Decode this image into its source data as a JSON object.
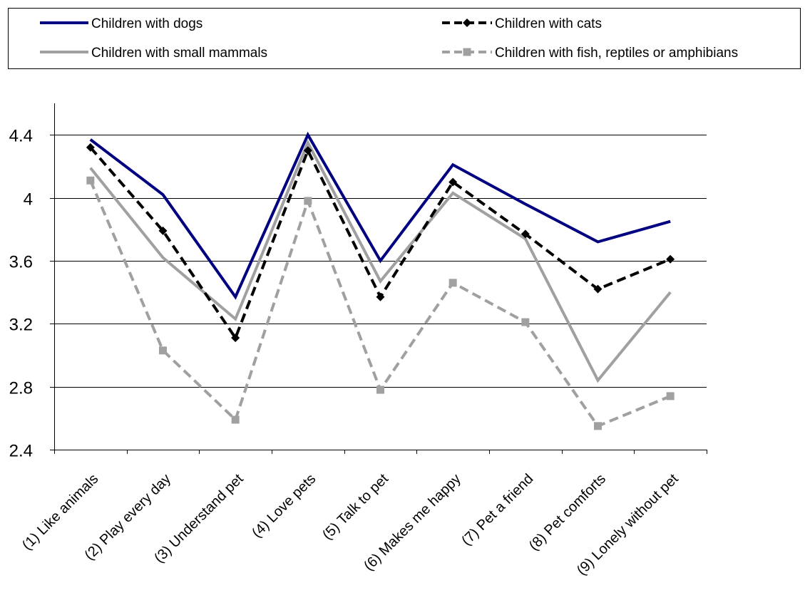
{
  "chart_data": {
    "type": "line",
    "title": "",
    "xlabel": "",
    "ylabel": "",
    "ylim": [
      2.4,
      4.6
    ],
    "yticks": [
      "2.4",
      "2.8",
      "3.2",
      "3.6",
      "4",
      "4.4"
    ],
    "grid": true,
    "legend_position": "top",
    "categories": [
      "(1) Like animals",
      "(2) Play every day",
      "(3) Understand pet",
      "(4) Love pets",
      "(5) Talk to pet",
      "(6) Makes me happy",
      "(7) Pet a friend",
      "(8) Pet comforts",
      "(9) Lonely without pet"
    ],
    "series": [
      {
        "name": "Children with dogs",
        "values": [
          4.37,
          4.02,
          3.37,
          4.4,
          3.6,
          4.21,
          3.96,
          3.72,
          3.85
        ],
        "color": "#000080",
        "style": "solid",
        "marker": "none"
      },
      {
        "name": "Children with cats",
        "values": [
          4.32,
          3.79,
          3.11,
          4.3,
          3.37,
          4.1,
          3.77,
          3.42,
          3.61
        ],
        "color": "#000000",
        "style": "dashed",
        "marker": "diamond"
      },
      {
        "name": "Children with small mammals",
        "values": [
          4.19,
          3.62,
          3.23,
          4.35,
          3.47,
          4.03,
          3.74,
          2.84,
          3.4
        ],
        "color": "#a0a0a0",
        "style": "solid",
        "marker": "none"
      },
      {
        "name": "Children with fish, reptiles or amphibians",
        "values": [
          4.11,
          3.03,
          2.59,
          3.98,
          2.78,
          3.46,
          3.21,
          2.55,
          2.74
        ],
        "color": "#a0a0a0",
        "style": "dashed",
        "marker": "square"
      }
    ]
  }
}
